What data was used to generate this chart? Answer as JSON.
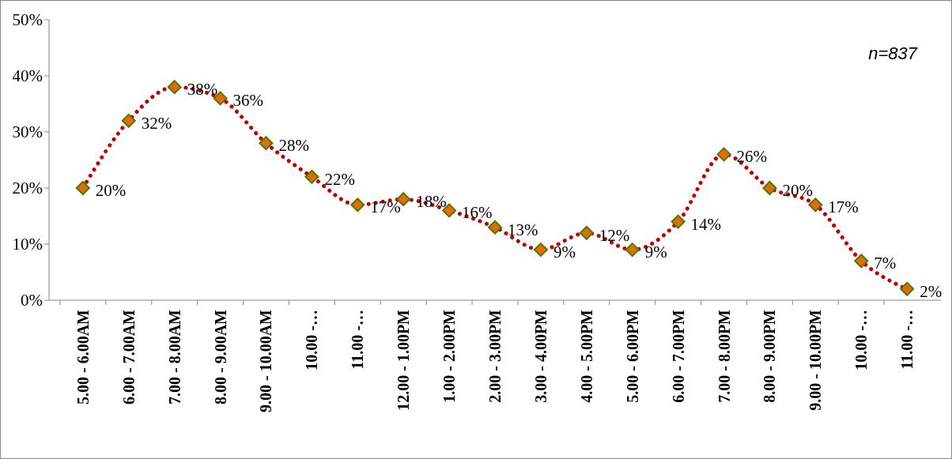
{
  "chart_data": {
    "type": "line",
    "categories": [
      "5.00 - 6.00AM",
      "6.00 - 7.00AM",
      "7.00 - 8.00AM",
      "8.00 - 9.00AM",
      "9.00 - 10.00AM",
      "10.00 -…",
      "11.00 -…",
      "12.00 - 1.00PM",
      "1.00 - 2.00PM",
      "2.00 - 3.00PM",
      "3.00 - 4.00PM",
      "4.00 - 5.00PM",
      "5.00 - 6.00PM",
      "6.00 - 7.00PM",
      "7.00 - 8.00PM",
      "8.00 - 9.00PM",
      "9.00 - 10.00PM",
      "10.00 -…",
      "11.00 -…"
    ],
    "series": [
      {
        "color": "#c00000",
        "colors": [
          "#e36c0a",
          "#e36c0a",
          "#e36c0a",
          "#e36c0a",
          "#e36c0a",
          "#e36c0a",
          "#e36c0a",
          "#e36c0a",
          "#e36c0a",
          "#e36c0a",
          "#e36c0a",
          "#e36c0a",
          "#e36c0a",
          "#e36c0a",
          "#e36c0a",
          "#e36c0a",
          "#e36c0a",
          "#e36c0a",
          "#e36c0a"
        ],
        "values": [
          20,
          32,
          38,
          36,
          28,
          22,
          17,
          18,
          16,
          13,
          9,
          12,
          9,
          14,
          26,
          20,
          17,
          7,
          2
        ],
        "value_labels": [
          "20%",
          "32%",
          "38%",
          "36%",
          "28%",
          "22%",
          "17%",
          "18%",
          "16%",
          "13%",
          "9%",
          "12%",
          "9%",
          "14%",
          "26%",
          "20%",
          "17%",
          "7%",
          "2%"
        ]
      }
    ],
    "ylim": [
      0,
      50
    ],
    "yticks": [
      {
        "value": 0,
        "label": "0%"
      },
      {
        "value": 10,
        "label": "10%"
      },
      {
        "value": 20,
        "label": "20%"
      },
      {
        "value": 30,
        "label": "30%"
      },
      {
        "value": 40,
        "label": "40%"
      },
      {
        "value": 50,
        "label": "50%"
      }
    ],
    "annotations": [
      "n=837"
    ],
    "marker": "diamond",
    "line_style": "dotted"
  }
}
